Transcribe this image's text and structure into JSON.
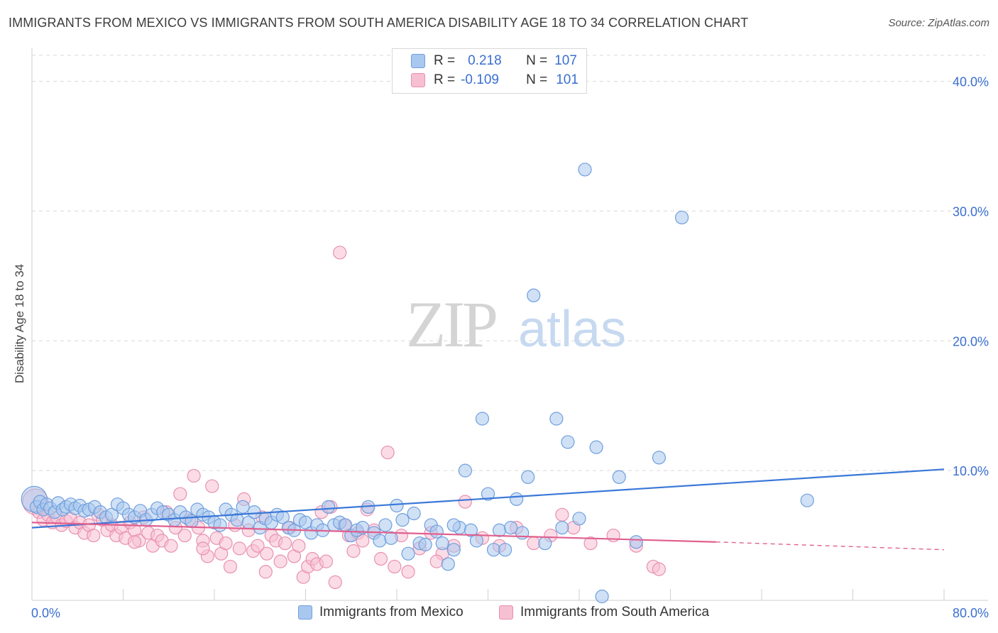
{
  "title": "IMMIGRANTS FROM MEXICO VS IMMIGRANTS FROM SOUTH AMERICA DISABILITY AGE 18 TO 34 CORRELATION CHART",
  "source": "Source: ZipAtlas.com",
  "watermark": {
    "zip": "ZIP",
    "atlas": "atlas"
  },
  "colors": {
    "blue": "#3a78d8",
    "blue_fill": "#a9c8ef",
    "blue_stroke": "#6f9fdc",
    "pink": "#e0608f",
    "pink_fill": "#f7bfd2",
    "pink_stroke": "#e890b0",
    "tick_label": "#3a6fd0",
    "grid": "#d9d9d9"
  },
  "stats": [
    {
      "r_label": "R =",
      "r_value": "0.218",
      "n_label": "N =",
      "n_value": "107",
      "color": "blue"
    },
    {
      "r_label": "R =",
      "r_value": "-0.109",
      "n_label": "N =",
      "n_value": "101",
      "color": "pink"
    }
  ],
  "chart_data": {
    "type": "scatter",
    "title": "IMMIGRANTS FROM MEXICO VS IMMIGRANTS FROM SOUTH AMERICA DISABILITY AGE 18 TO 34 CORRELATION CHART",
    "xlabel": "",
    "ylabel": "Disability Age 18 to 34",
    "xlim": [
      0,
      80
    ],
    "ylim": [
      0,
      42
    ],
    "x_tick_labels": [
      "0.0%",
      "80.0%"
    ],
    "y_ticks": [
      10,
      20,
      30,
      40
    ],
    "y_tick_labels": [
      "10.0%",
      "20.0%",
      "30.0%",
      "40.0%"
    ],
    "grid": true,
    "legend_position": "bottom",
    "series": [
      {
        "name": "Immigrants from Mexico",
        "color": "blue",
        "trend": {
          "x": [
            0,
            80
          ],
          "y": [
            5.6,
            10.1
          ]
        },
        "points": [
          [
            0.2,
            7.8
          ],
          [
            0.4,
            7.2
          ],
          [
            0.7,
            7.6
          ],
          [
            1.0,
            7.0
          ],
          [
            1.3,
            7.4
          ],
          [
            1.6,
            7.1
          ],
          [
            2.0,
            6.8
          ],
          [
            2.3,
            7.5
          ],
          [
            2.7,
            7.0
          ],
          [
            3.0,
            7.2
          ],
          [
            3.4,
            7.4
          ],
          [
            3.8,
            7.1
          ],
          [
            4.2,
            7.3
          ],
          [
            4.6,
            6.9
          ],
          [
            5.0,
            7.0
          ],
          [
            5.5,
            7.2
          ],
          [
            6.0,
            6.8
          ],
          [
            6.5,
            6.4
          ],
          [
            7.0,
            6.6
          ],
          [
            7.5,
            7.4
          ],
          [
            8.0,
            7.1
          ],
          [
            8.5,
            6.6
          ],
          [
            9.0,
            6.4
          ],
          [
            9.5,
            6.9
          ],
          [
            10.0,
            6.2
          ],
          [
            10.5,
            6.6
          ],
          [
            11.0,
            7.1
          ],
          [
            11.5,
            6.8
          ],
          [
            12.0,
            6.6
          ],
          [
            12.5,
            6.2
          ],
          [
            13.0,
            6.8
          ],
          [
            13.5,
            6.4
          ],
          [
            14.0,
            6.1
          ],
          [
            14.5,
            7.0
          ],
          [
            15.0,
            6.6
          ],
          [
            15.5,
            6.4
          ],
          [
            16.0,
            6.0
          ],
          [
            16.5,
            5.8
          ],
          [
            17.0,
            7.0
          ],
          [
            17.5,
            6.6
          ],
          [
            18.0,
            6.2
          ],
          [
            18.5,
            7.2
          ],
          [
            19.0,
            6.0
          ],
          [
            19.5,
            6.8
          ],
          [
            20.0,
            5.6
          ],
          [
            20.5,
            6.3
          ],
          [
            21.0,
            6.0
          ],
          [
            21.5,
            6.6
          ],
          [
            22.0,
            6.4
          ],
          [
            22.5,
            5.6
          ],
          [
            23.0,
            5.4
          ],
          [
            23.5,
            6.2
          ],
          [
            24.0,
            6.0
          ],
          [
            24.5,
            5.2
          ],
          [
            25.0,
            5.8
          ],
          [
            25.5,
            5.4
          ],
          [
            26.0,
            7.2
          ],
          [
            26.5,
            5.8
          ],
          [
            27.0,
            6.0
          ],
          [
            27.5,
            5.8
          ],
          [
            28.0,
            5.0
          ],
          [
            28.5,
            5.4
          ],
          [
            29.0,
            5.6
          ],
          [
            29.5,
            7.2
          ],
          [
            30.0,
            5.2
          ],
          [
            30.5,
            4.6
          ],
          [
            31.0,
            5.8
          ],
          [
            31.5,
            4.8
          ],
          [
            32.0,
            7.3
          ],
          [
            32.5,
            6.2
          ],
          [
            33.0,
            3.6
          ],
          [
            33.5,
            6.7
          ],
          [
            34.0,
            4.4
          ],
          [
            34.5,
            4.3
          ],
          [
            35.0,
            5.8
          ],
          [
            35.5,
            5.3
          ],
          [
            36.0,
            4.4
          ],
          [
            36.5,
            2.8
          ],
          [
            37.0,
            3.9
          ],
          [
            37.5,
            5.6
          ],
          [
            38.0,
            10.0
          ],
          [
            38.5,
            5.4
          ],
          [
            39.0,
            4.6
          ],
          [
            39.5,
            14.0
          ],
          [
            40.0,
            8.2
          ],
          [
            40.5,
            3.9
          ],
          [
            41.0,
            5.4
          ],
          [
            41.5,
            3.9
          ],
          [
            42.0,
            5.6
          ],
          [
            42.5,
            7.8
          ],
          [
            43.0,
            5.2
          ],
          [
            43.5,
            9.5
          ],
          [
            44.0,
            23.5
          ],
          [
            45.0,
            4.4
          ],
          [
            46.0,
            14.0
          ],
          [
            46.5,
            5.6
          ],
          [
            47.0,
            12.2
          ],
          [
            48.0,
            6.3
          ],
          [
            48.5,
            33.2
          ],
          [
            49.5,
            11.8
          ],
          [
            51.5,
            9.5
          ],
          [
            53.0,
            4.5
          ],
          [
            55.0,
            11.0
          ],
          [
            57.0,
            29.5
          ],
          [
            68.0,
            7.7
          ],
          [
            50.0,
            0.3
          ],
          [
            37.0,
            5.8
          ]
        ]
      },
      {
        "name": "Immigrants from South America",
        "color": "pink",
        "trend": {
          "x": [
            0,
            60
          ],
          "y": [
            6.0,
            4.5
          ]
        },
        "trend_dashed": {
          "x": [
            60,
            80
          ],
          "y": [
            4.5,
            3.9
          ]
        },
        "points": [
          [
            0.3,
            7.6
          ],
          [
            0.6,
            6.8
          ],
          [
            1.0,
            6.2
          ],
          [
            1.4,
            6.6
          ],
          [
            1.8,
            6.0
          ],
          [
            2.2,
            6.4
          ],
          [
            2.6,
            5.8
          ],
          [
            3.0,
            6.1
          ],
          [
            3.4,
            6.3
          ],
          [
            3.8,
            5.6
          ],
          [
            4.2,
            6.0
          ],
          [
            4.6,
            5.2
          ],
          [
            5.0,
            5.8
          ],
          [
            5.4,
            5.0
          ],
          [
            5.8,
            6.6
          ],
          [
            6.2,
            6.2
          ],
          [
            6.6,
            5.4
          ],
          [
            7.0,
            5.8
          ],
          [
            7.4,
            5.0
          ],
          [
            7.8,
            5.6
          ],
          [
            8.2,
            4.8
          ],
          [
            8.6,
            6.0
          ],
          [
            9.0,
            5.4
          ],
          [
            9.4,
            4.6
          ],
          [
            9.8,
            6.4
          ],
          [
            10.2,
            5.2
          ],
          [
            10.6,
            4.2
          ],
          [
            11.0,
            5.0
          ],
          [
            11.4,
            4.6
          ],
          [
            11.8,
            6.8
          ],
          [
            12.2,
            4.2
          ],
          [
            12.6,
            5.6
          ],
          [
            13.0,
            8.2
          ],
          [
            13.4,
            5.0
          ],
          [
            13.8,
            6.2
          ],
          [
            14.2,
            9.6
          ],
          [
            14.6,
            5.6
          ],
          [
            15.0,
            4.6
          ],
          [
            15.4,
            3.4
          ],
          [
            15.8,
            8.8
          ],
          [
            16.2,
            4.8
          ],
          [
            16.6,
            3.6
          ],
          [
            17.0,
            4.4
          ],
          [
            17.4,
            2.6
          ],
          [
            17.8,
            5.8
          ],
          [
            18.2,
            4.0
          ],
          [
            18.6,
            7.8
          ],
          [
            19.0,
            5.4
          ],
          [
            19.4,
            3.8
          ],
          [
            19.8,
            4.2
          ],
          [
            20.2,
            6.4
          ],
          [
            20.6,
            3.6
          ],
          [
            21.0,
            5.0
          ],
          [
            21.4,
            4.6
          ],
          [
            21.8,
            3.0
          ],
          [
            22.2,
            4.4
          ],
          [
            22.6,
            5.6
          ],
          [
            23.0,
            3.4
          ],
          [
            23.4,
            4.2
          ],
          [
            23.8,
            1.8
          ],
          [
            24.2,
            2.6
          ],
          [
            24.6,
            3.2
          ],
          [
            25.0,
            2.8
          ],
          [
            25.4,
            6.8
          ],
          [
            25.8,
            3.0
          ],
          [
            26.2,
            7.2
          ],
          [
            26.6,
            1.4
          ],
          [
            27.0,
            26.8
          ],
          [
            27.4,
            5.8
          ],
          [
            27.8,
            5.0
          ],
          [
            28.2,
            3.8
          ],
          [
            28.6,
            5.2
          ],
          [
            29.0,
            4.6
          ],
          [
            29.4,
            7.0
          ],
          [
            30.0,
            5.4
          ],
          [
            30.6,
            3.2
          ],
          [
            31.2,
            11.4
          ],
          [
            31.8,
            2.6
          ],
          [
            32.4,
            5.0
          ],
          [
            33.0,
            2.2
          ],
          [
            34.0,
            4.0
          ],
          [
            35.0,
            5.2
          ],
          [
            36.0,
            3.6
          ],
          [
            37.0,
            4.2
          ],
          [
            38.0,
            7.6
          ],
          [
            39.5,
            4.8
          ],
          [
            41.0,
            4.2
          ],
          [
            42.5,
            5.6
          ],
          [
            44.0,
            4.4
          ],
          [
            45.5,
            5.0
          ],
          [
            46.5,
            6.6
          ],
          [
            47.5,
            5.6
          ],
          [
            49.0,
            4.4
          ],
          [
            51.0,
            5.0
          ],
          [
            53.0,
            4.2
          ],
          [
            54.5,
            2.6
          ],
          [
            55.0,
            2.4
          ],
          [
            35.5,
            3.0
          ],
          [
            20.5,
            2.2
          ],
          [
            15.0,
            4.0
          ],
          [
            9.0,
            4.5
          ]
        ]
      }
    ]
  }
}
